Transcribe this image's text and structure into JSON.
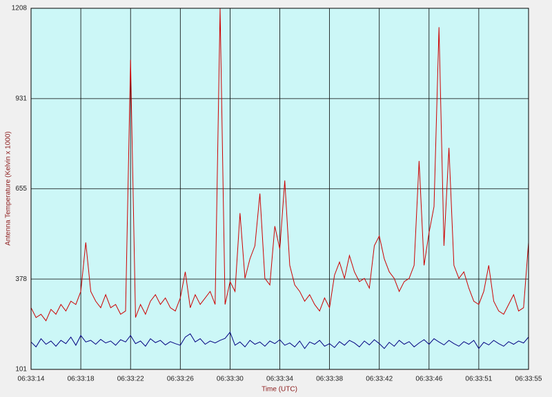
{
  "chart_data": {
    "type": "line",
    "x_label": "Time (UTC)",
    "y_label": "Antenna Temperature (Kelvin x 1000)",
    "categories": [
      "06:33:14",
      null,
      null,
      null,
      null,
      null,
      null,
      null,
      null,
      null,
      "06:33:18",
      null,
      null,
      null,
      null,
      null,
      null,
      null,
      null,
      null,
      "06:33:22",
      null,
      null,
      null,
      null,
      null,
      null,
      null,
      null,
      null,
      "06:33:26",
      null,
      null,
      null,
      null,
      null,
      null,
      null,
      null,
      null,
      "06:33:30",
      null,
      null,
      null,
      null,
      null,
      null,
      null,
      null,
      null,
      "06:33:34",
      null,
      null,
      null,
      null,
      null,
      null,
      null,
      null,
      null,
      "06:33:38",
      null,
      null,
      null,
      null,
      null,
      null,
      null,
      null,
      null,
      "06:33:42",
      null,
      null,
      null,
      null,
      null,
      null,
      null,
      null,
      null,
      "06:33:46",
      null,
      null,
      null,
      null,
      null,
      null,
      null,
      null,
      null,
      "06:33:51",
      null,
      null,
      null,
      null,
      null,
      null,
      null,
      null,
      null,
      "06:33:55"
    ],
    "series": [
      {
        "color": "#cc0000",
        "values": [
          290,
          260,
          270,
          250,
          285,
          270,
          300,
          280,
          310,
          300,
          340,
          490,
          340,
          310,
          290,
          330,
          290,
          300,
          270,
          280,
          1050,
          260,
          300,
          270,
          310,
          330,
          300,
          320,
          290,
          280,
          320,
          400,
          290,
          330,
          300,
          320,
          340,
          300,
          1208,
          300,
          370,
          340,
          580,
          380,
          440,
          480,
          640,
          380,
          360,
          540,
          470,
          680,
          420,
          360,
          340,
          310,
          330,
          300,
          280,
          320,
          290,
          390,
          430,
          380,
          450,
          400,
          370,
          380,
          350,
          480,
          510,
          440,
          400,
          380,
          340,
          370,
          380,
          420,
          740,
          420,
          520,
          600,
          1150,
          480,
          780,
          420,
          380,
          400,
          350,
          310,
          300,
          340,
          420,
          310,
          280,
          270,
          300,
          330,
          280,
          290,
          490
        ]
      },
      {
        "color": "#000080",
        "values": [
          185,
          170,
          195,
          178,
          188,
          172,
          190,
          180,
          200,
          175,
          205,
          185,
          190,
          178,
          193,
          182,
          188,
          175,
          192,
          185,
          205,
          180,
          188,
          172,
          195,
          183,
          190,
          176,
          186,
          180,
          175,
          200,
          210,
          185,
          195,
          178,
          188,
          182,
          190,
          196,
          215,
          175,
          185,
          170,
          190,
          178,
          185,
          172,
          188,
          180,
          192,
          175,
          182,
          170,
          188,
          165,
          185,
          178,
          190,
          172,
          180,
          168,
          186,
          175,
          190,
          182,
          170,
          188,
          176,
          192,
          180,
          165,
          184,
          172,
          190,
          178,
          186,
          170,
          182,
          192,
          178,
          195,
          185,
          176,
          190,
          180,
          172,
          186,
          178,
          190,
          165,
          184,
          176,
          190,
          180,
          172,
          186,
          178,
          188,
          182,
          200
        ]
      }
    ],
    "ylim": [
      101,
      1208
    ],
    "yticks": [
      101,
      378,
      655,
      931,
      1208
    ],
    "grid": true,
    "background": "#ccf7f7"
  }
}
